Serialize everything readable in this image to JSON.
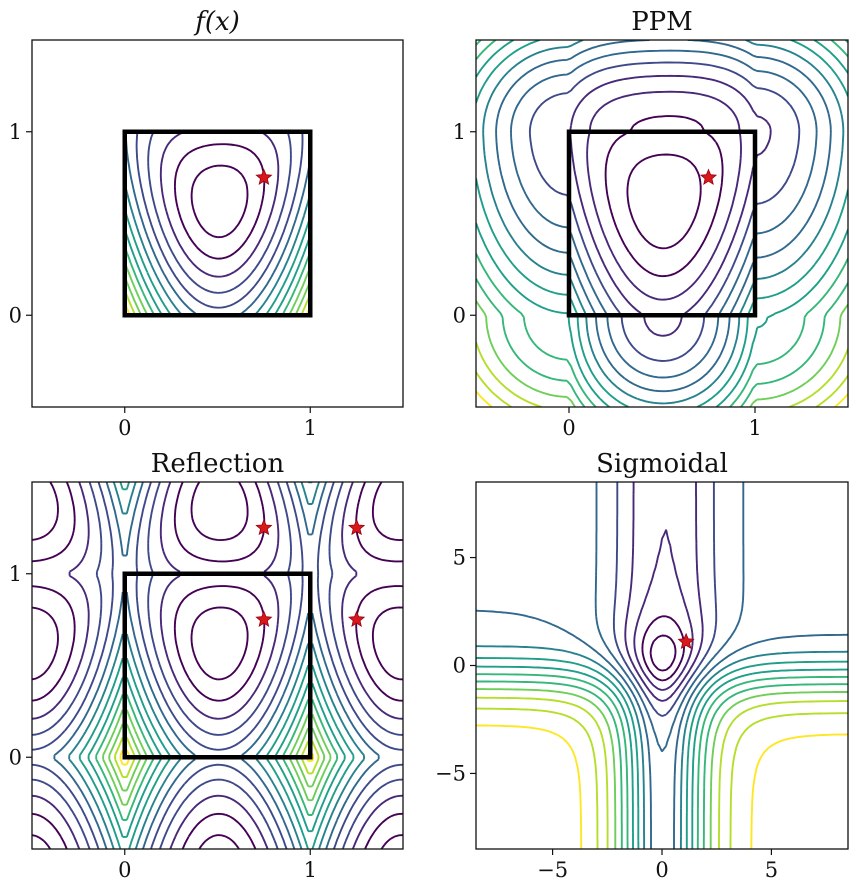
{
  "figure": {
    "colormap": [
      "#440154",
      "#482878",
      "#3e4989",
      "#31688e",
      "#26828e",
      "#1f9e89",
      "#35b779",
      "#6ece58",
      "#b5de2b",
      "#fde725"
    ],
    "marker_color": "#d7191c"
  },
  "chart_data": [
    {
      "type": "contour",
      "title": "f(x)",
      "xlim": [
        -0.5,
        1.5
      ],
      "ylim": [
        -0.5,
        1.5
      ],
      "xticks": [
        0,
        1
      ],
      "yticks": [
        0,
        1
      ],
      "function": "ridge",
      "domain_box": [
        [
          0,
          0
        ],
        [
          1,
          1
        ]
      ],
      "clip_to_box": true,
      "levels": 14,
      "markers": [
        [
          0.75,
          0.75
        ]
      ]
    },
    {
      "type": "contour",
      "title": "PPM",
      "xlim": [
        -0.5,
        1.5
      ],
      "ylim": [
        -0.5,
        1.5
      ],
      "xticks": [
        0,
        1
      ],
      "yticks": [
        0,
        1
      ],
      "function": "ppm",
      "domain_box": [
        [
          0,
          0
        ],
        [
          1,
          1
        ]
      ],
      "clip_to_box": false,
      "levels": 16,
      "markers": [
        [
          0.75,
          0.75
        ]
      ]
    },
    {
      "type": "contour",
      "title": "Reflection",
      "xlim": [
        -0.5,
        1.5
      ],
      "ylim": [
        -0.5,
        1.5
      ],
      "xticks": [
        0,
        1
      ],
      "yticks": [
        0,
        1
      ],
      "function": "reflection",
      "domain_box": [
        [
          0,
          0
        ],
        [
          1,
          1
        ]
      ],
      "clip_to_box": false,
      "levels": 14,
      "markers": [
        [
          0.75,
          0.75
        ],
        [
          0.75,
          1.25
        ],
        [
          1.25,
          0.75
        ],
        [
          1.25,
          1.25
        ]
      ]
    },
    {
      "type": "contour",
      "title": "Sigmoidal",
      "xlim": [
        -8.5,
        8.5
      ],
      "ylim": [
        -8.5,
        8.5
      ],
      "xticks": [
        -5,
        0,
        5
      ],
      "yticks": [
        -5,
        0,
        5
      ],
      "function": "sigmoidal",
      "domain_box": null,
      "clip_to_box": false,
      "levels": 16,
      "markers": [
        [
          1.1,
          1.1
        ]
      ]
    }
  ]
}
